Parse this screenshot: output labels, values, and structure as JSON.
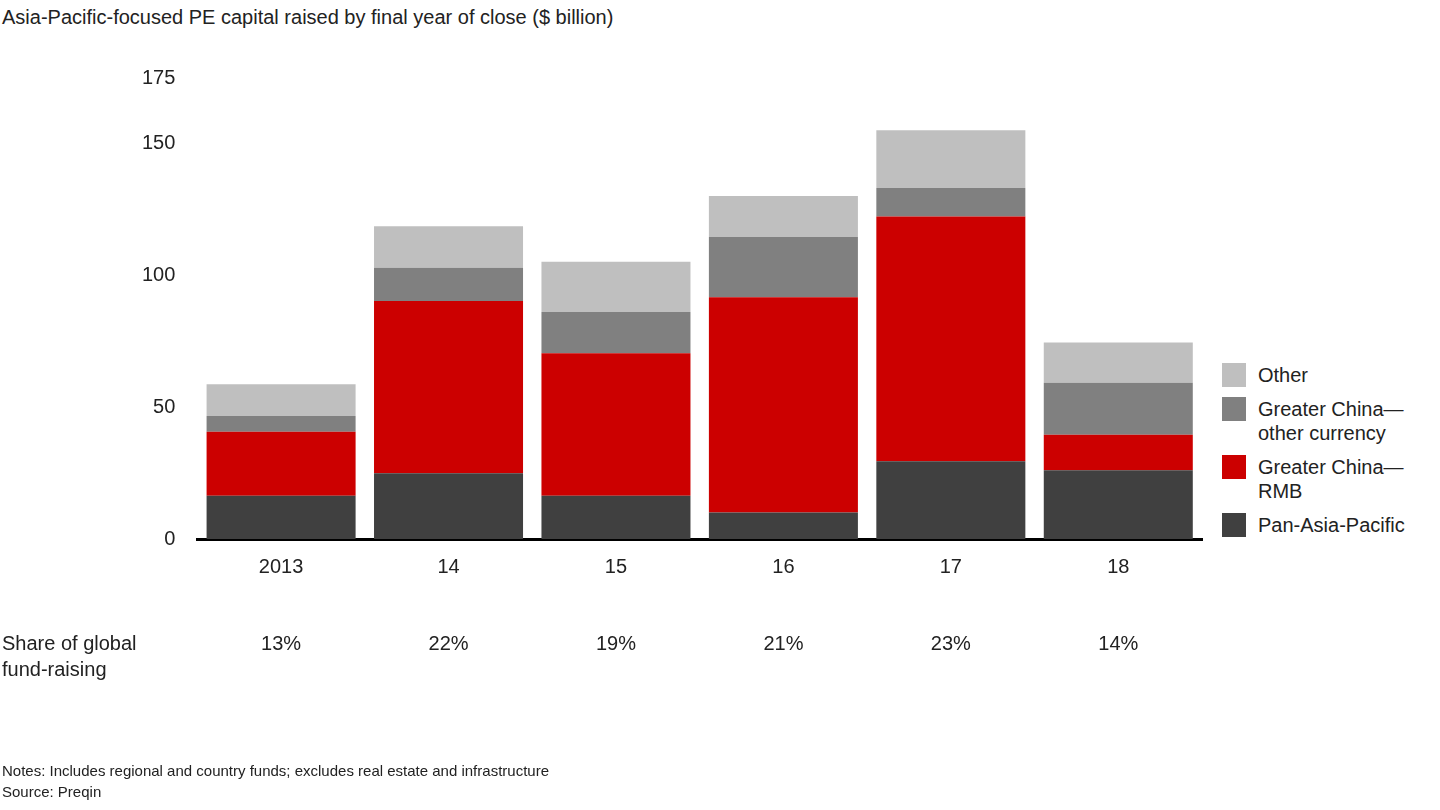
{
  "chart_data": {
    "type": "bar",
    "title": "Asia-Pacific-focused PE capital raised by final year of close ($ billion)",
    "categories": [
      "2013",
      "14",
      "15",
      "16",
      "17",
      "18"
    ],
    "series": [
      {
        "name": "Pan-Asia-Pacific",
        "color": "#404040",
        "values": [
          16.4,
          25.0,
          16.4,
          10.1,
          29.5,
          26.1
        ]
      },
      {
        "name": "Greater China—RMB",
        "color": "#cc0000",
        "values": [
          24.3,
          65.3,
          54.1,
          81.7,
          92.9,
          13.5
        ]
      },
      {
        "name": "Greater China—other currency",
        "color": "#808080",
        "values": [
          6.0,
          12.7,
          15.7,
          22.8,
          10.8,
          19.7
        ]
      },
      {
        "name": "Other",
        "color": "#bfbfbf",
        "values": [
          12.0,
          15.7,
          19.0,
          15.6,
          22.0,
          15.3
        ]
      }
    ],
    "stacked": true,
    "grid": false,
    "legend": "right",
    "ylim": [
      0,
      175
    ],
    "yticks": [
      0,
      50,
      100,
      150,
      175
    ],
    "share_of_global_fund_raising": {
      "label": "Share of global fund-raising",
      "values": [
        13,
        22,
        19,
        21,
        23,
        14
      ],
      "value_labels": [
        "13%",
        "22%",
        "19%",
        "21%",
        "23%",
        "14%"
      ]
    },
    "notes": "Notes: Includes regional and country funds; excludes real estate and infrastructure",
    "source": "Source: Preqin"
  }
}
